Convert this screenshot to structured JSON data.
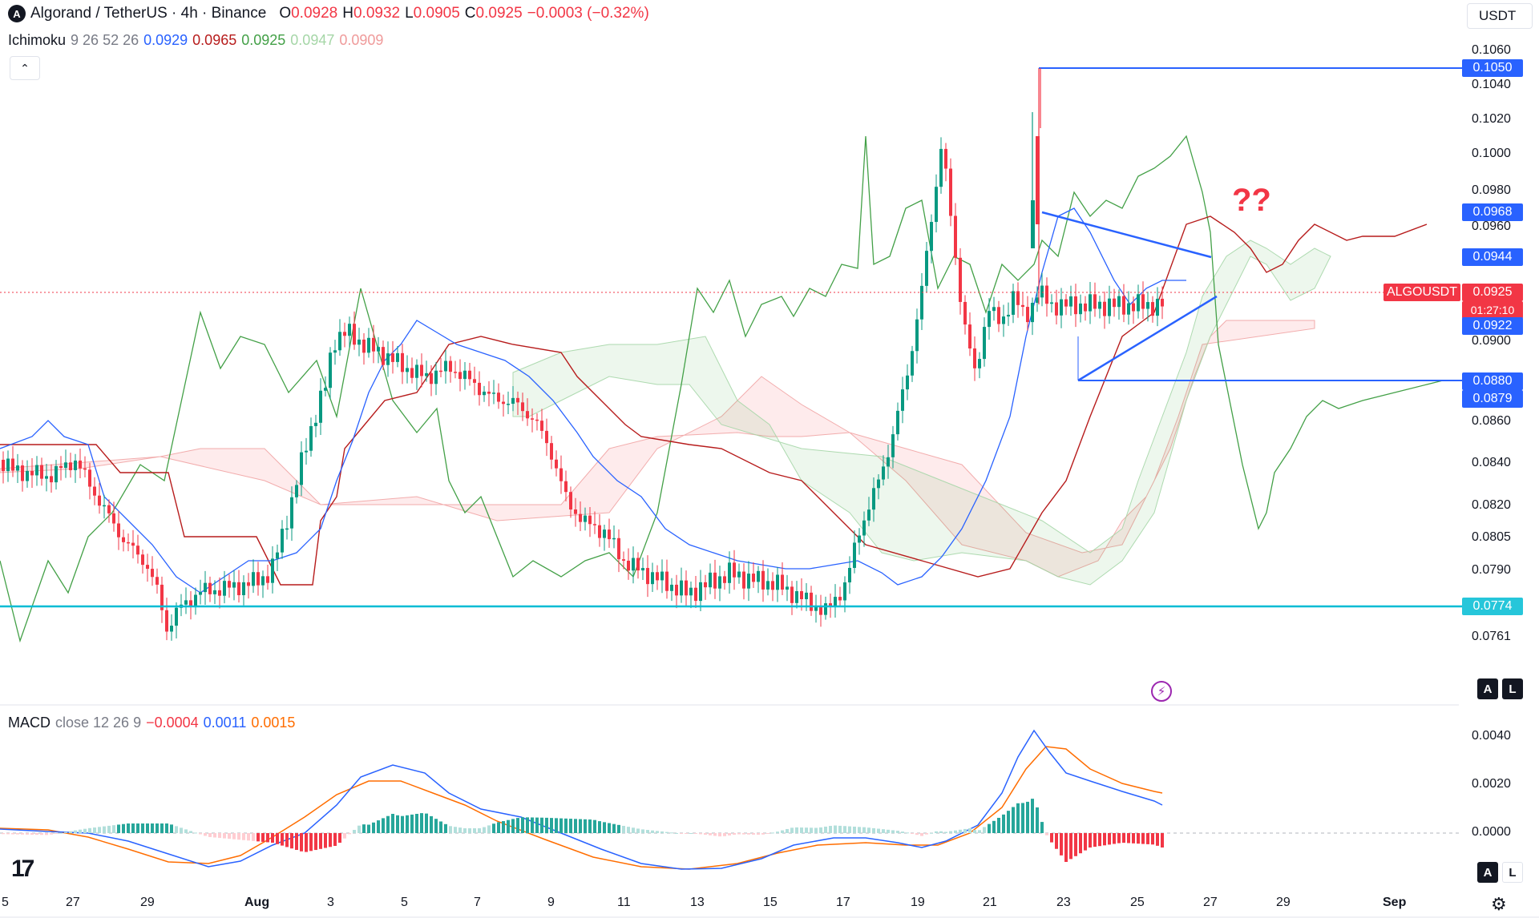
{
  "header": {
    "title": "Algorand / TetherUS · 4h · Binance",
    "logo_letter": "A",
    "o_label": "O",
    "o_value": "0.0928",
    "h_label": "H",
    "h_value": "0.0932",
    "l_label": "L",
    "l_value": "0.0905",
    "c_label": "C",
    "c_value": "0.0925",
    "change": "−0.0003 (−0.32%)"
  },
  "ichimoku": {
    "label": "Ichimoku",
    "params": "9 26 52 26",
    "v1": "0.0929",
    "v2": "0.0965",
    "v3": "0.0925",
    "v4": "0.0947",
    "v5": "0.0909",
    "colors": {
      "conversion": "#2962ff",
      "base": "#b71c1c",
      "lagging": "#43a047",
      "spanA": "#a5d6a7",
      "spanB": "#ef9a9a"
    }
  },
  "macd": {
    "label": "MACD",
    "params": "close 12 26 9",
    "v_hist": "−0.0004",
    "v_macd": "0.0011",
    "v_signal": "0.0015",
    "colors": {
      "macd": "#2962ff",
      "signal": "#ff6d00"
    }
  },
  "currency": "USDT",
  "collapse_icon": "chevron-up-icon",
  "annotation_text": "??",
  "price_axis": {
    "ticks": [
      "0.1060",
      "0.1040",
      "0.1020",
      "0.1000",
      "0.0980",
      "0.0960",
      "0.0940",
      "0.0900",
      "0.0860",
      "0.0840",
      "0.0820",
      "0.0805",
      "0.0790",
      "0.0761"
    ]
  },
  "macd_axis": {
    "ticks": [
      "0.0040",
      "0.0020",
      "0.0000"
    ]
  },
  "price_labels": {
    "l1050": "0.1050",
    "l968": "0.0968",
    "l944": "0.0944",
    "symbol": "ALGOUSDT",
    "current": "0.0925",
    "countdown": "01:27:10",
    "l922": "0.0922",
    "l880": "0.0880",
    "l879": "0.0879",
    "l774": "0.0774"
  },
  "axis_buttons": {
    "auto": "A",
    "log": "L"
  },
  "date_labels": [
    "5",
    "27",
    "29",
    "Aug",
    "3",
    "5",
    "7",
    "9",
    "11",
    "13",
    "15",
    "17",
    "19",
    "21",
    "23",
    "25",
    "27",
    "29",
    "Sep"
  ],
  "chart_data": {
    "type": "candlestick",
    "symbol": "ALGOUSDT",
    "interval": "4h",
    "exchange": "Binance",
    "y_range": [
      0.075,
      0.107
    ],
    "current_price": 0.0925,
    "horizontal_levels": [
      0.105,
      0.088,
      0.0774
    ],
    "triangle_upper_line": [
      [
        0.0968,
        "Aug 22"
      ],
      [
        0.0944,
        "Aug 26"
      ]
    ],
    "triangle_lower_line": [
      [
        0.088,
        "Aug 22"
      ],
      [
        0.0922,
        "Aug 26"
      ]
    ],
    "close_path": [
      [
        0,
        0.085
      ],
      [
        0.3,
        0.0845
      ],
      [
        1.2,
        0.0842
      ],
      [
        1.8,
        0.085
      ],
      [
        2.5,
        0.0826
      ],
      [
        3.0,
        0.081
      ],
      [
        3.5,
        0.08
      ],
      [
        3.8,
        0.0785
      ],
      [
        4.0,
        0.0768
      ],
      [
        4.3,
        0.0778
      ],
      [
        4.8,
        0.0786
      ],
      [
        5.5,
        0.0788
      ],
      [
        6.0,
        0.079
      ],
      [
        6.5,
        0.0795
      ],
      [
        7.0,
        0.083
      ],
      [
        7.4,
        0.0862
      ],
      [
        7.8,
        0.0885
      ],
      [
        8.0,
        0.0908
      ],
      [
        8.3,
        0.0912
      ],
      [
        8.8,
        0.0905
      ],
      [
        9.3,
        0.09
      ],
      [
        9.7,
        0.0895
      ],
      [
        10.2,
        0.089
      ],
      [
        10.8,
        0.0895
      ],
      [
        11.3,
        0.0888
      ],
      [
        11.8,
        0.088
      ],
      [
        12.3,
        0.0878
      ],
      [
        12.8,
        0.087
      ],
      [
        13.2,
        0.0855
      ],
      [
        13.6,
        0.083
      ],
      [
        14.0,
        0.082
      ],
      [
        14.5,
        0.0815
      ],
      [
        15.0,
        0.08
      ],
      [
        15.5,
        0.0795
      ],
      [
        16.0,
        0.079
      ],
      [
        16.5,
        0.0785
      ],
      [
        17.0,
        0.079
      ],
      [
        17.5,
        0.0795
      ],
      [
        18.0,
        0.0792
      ],
      [
        18.6,
        0.079
      ],
      [
        19.3,
        0.0782
      ],
      [
        19.8,
        0.0776
      ],
      [
        20.3,
        0.079
      ],
      [
        20.6,
        0.0815
      ],
      [
        21.0,
        0.0835
      ],
      [
        21.4,
        0.086
      ],
      [
        21.8,
        0.0895
      ],
      [
        22.1,
        0.093
      ],
      [
        22.4,
        0.0975
      ],
      [
        22.6,
        0.1005
      ],
      [
        22.85,
        0.096
      ],
      [
        23.1,
        0.092
      ],
      [
        23.4,
        0.089
      ],
      [
        23.7,
        0.0925
      ],
      [
        24.0,
        0.0915
      ],
      [
        24.3,
        0.093
      ],
      [
        24.6,
        0.0918
      ],
      [
        24.9,
        0.0932
      ],
      [
        25.2,
        0.0925
      ]
    ],
    "macd_y_range": [
      -0.0025,
      0.0048
    ]
  }
}
